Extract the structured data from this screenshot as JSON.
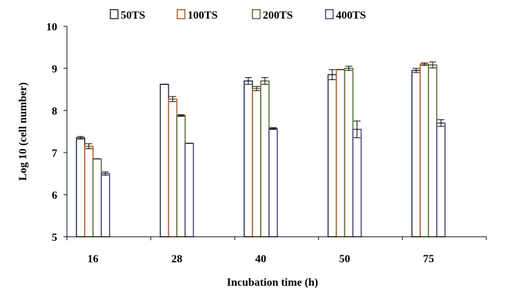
{
  "chart_data": {
    "type": "bar",
    "title": "",
    "xlabel": "Incubation time (h)",
    "ylabel": "Log 10 (cell number)",
    "ylim": [
      5,
      10
    ],
    "yticks": [
      "5",
      "6",
      "7",
      "8",
      "9",
      "10"
    ],
    "categories": [
      "16",
      "28",
      "40",
      "50",
      "75"
    ],
    "legend_position": "top",
    "series": [
      {
        "name": "50TS",
        "color": "#1f2a4a",
        "values": [
          7.35,
          8.62,
          8.7,
          8.85,
          8.95
        ],
        "errors": [
          0.03,
          0.0,
          0.08,
          0.12,
          0.05
        ]
      },
      {
        "name": "100TS",
        "color": "#b5561a",
        "values": [
          7.15,
          8.27,
          8.52,
          8.97,
          9.1
        ],
        "errors": [
          0.06,
          0.06,
          0.05,
          0.0,
          0.03
        ]
      },
      {
        "name": "200TS",
        "color": "#4f6b2a",
        "values": [
          6.85,
          7.88,
          8.7,
          9.0,
          9.08
        ],
        "errors": [
          0.0,
          0.02,
          0.08,
          0.05,
          0.07
        ]
      },
      {
        "name": "400TS",
        "color": "#4a3a73",
        "values": [
          6.5,
          7.22,
          7.57,
          7.55,
          7.7
        ],
        "errors": [
          0.04,
          0.0,
          0.02,
          0.2,
          0.08
        ]
      }
    ]
  }
}
